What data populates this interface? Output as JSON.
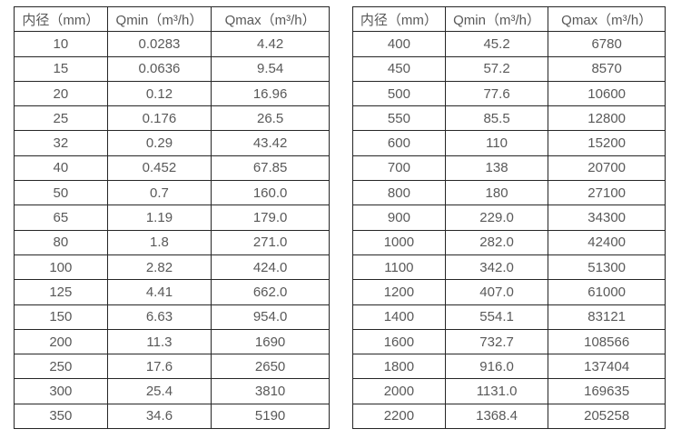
{
  "colors": {
    "border": "#262626",
    "text": "#595959",
    "background": "#ffffff"
  },
  "tables": [
    {
      "name": "flow-table-left",
      "headers": [
        "内径（mm）",
        "Qmin（m³/h）",
        "Qmax（m³/h）"
      ],
      "rows": [
        [
          "10",
          "0.0283",
          "4.42"
        ],
        [
          "15",
          "0.0636",
          "9.54"
        ],
        [
          "20",
          "0.12",
          "16.96"
        ],
        [
          "25",
          "0.176",
          "26.5"
        ],
        [
          "32",
          "0.29",
          "43.42"
        ],
        [
          "40",
          "0.452",
          "67.85"
        ],
        [
          "50",
          "0.7",
          "160.0"
        ],
        [
          "65",
          "1.19",
          "179.0"
        ],
        [
          "80",
          "1.8",
          "271.0"
        ],
        [
          "100",
          "2.82",
          "424.0"
        ],
        [
          "125",
          "4.41",
          "662.0"
        ],
        [
          "150",
          "6.63",
          "954.0"
        ],
        [
          "200",
          "11.3",
          "1690"
        ],
        [
          "250",
          "17.6",
          "2650"
        ],
        [
          "300",
          "25.4",
          "3810"
        ],
        [
          "350",
          "34.6",
          "5190"
        ]
      ]
    },
    {
      "name": "flow-table-right",
      "headers": [
        "内径（mm）",
        "Qmin（m³/h）",
        "Qmax（m³/h）"
      ],
      "rows": [
        [
          "400",
          "45.2",
          "6780"
        ],
        [
          "450",
          "57.2",
          "8570"
        ],
        [
          "500",
          "77.6",
          "10600"
        ],
        [
          "550",
          "85.5",
          "12800"
        ],
        [
          "600",
          "110",
          "15200"
        ],
        [
          "700",
          "138",
          "20700"
        ],
        [
          "800",
          "180",
          "27100"
        ],
        [
          "900",
          "229.0",
          "34300"
        ],
        [
          "1000",
          "282.0",
          "42400"
        ],
        [
          "1100",
          "342.0",
          "51300"
        ],
        [
          "1200",
          "407.0",
          "61000"
        ],
        [
          "1400",
          "554.1",
          "83121"
        ],
        [
          "1600",
          "732.7",
          "108566"
        ],
        [
          "1800",
          "916.0",
          "137404"
        ],
        [
          "2000",
          "1131.0",
          "169635"
        ],
        [
          "2200",
          "1368.4",
          "205258"
        ]
      ]
    }
  ]
}
